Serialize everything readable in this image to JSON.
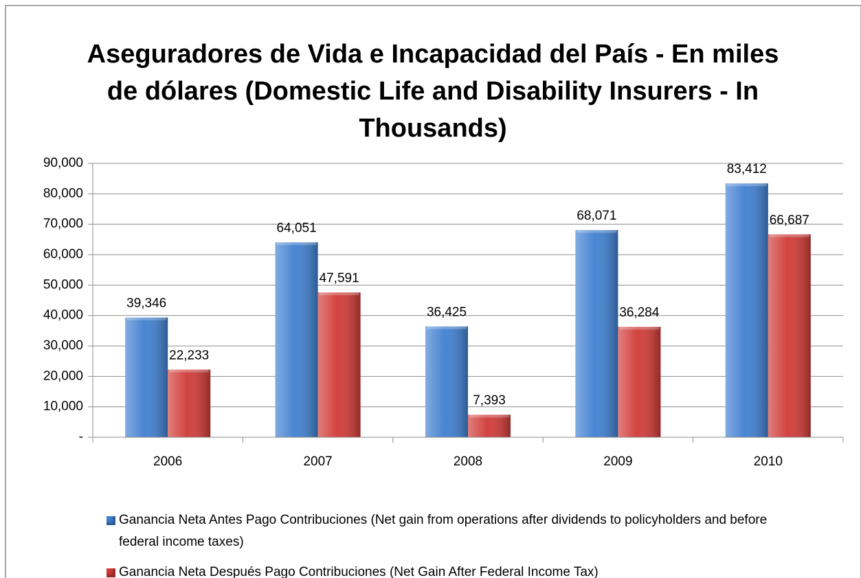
{
  "chart_data": {
    "type": "bar",
    "title": "Aseguradores de Vida e Incapacidad del País - En miles de dólares (Domestic Life and Disability Insurers - In Thousands)",
    "categories": [
      "2006",
      "2007",
      "2008",
      "2009",
      "2010"
    ],
    "series": [
      {
        "name": "Ganancia Neta Antes Pago Contribuciones  (Net gain from operations after dividends to policyholders and before federal income taxes)",
        "color": "#3f7fd0",
        "values": [
          39346,
          64051,
          36425,
          68071,
          83412
        ],
        "value_labels": [
          "39,346",
          "64,051",
          "36,425",
          "68,071",
          "83,412"
        ]
      },
      {
        "name": "Ganancia Neta Después Pago Contribuciones (Net Gain After Federal Income Tax)",
        "color": "#d03a36",
        "values": [
          22233,
          47591,
          7393,
          36284,
          66687
        ],
        "value_labels": [
          "22,233",
          "47,591",
          "7,393",
          "36,284",
          "66,687"
        ]
      }
    ],
    "ylim": [
      0,
      90000
    ],
    "yticks": [
      {
        "value": 0,
        "label": "-"
      },
      {
        "value": 10000,
        "label": "10,000"
      },
      {
        "value": 20000,
        "label": "20,000"
      },
      {
        "value": 30000,
        "label": "30,000"
      },
      {
        "value": 40000,
        "label": "40,000"
      },
      {
        "value": 50000,
        "label": "50,000"
      },
      {
        "value": 60000,
        "label": "60,000"
      },
      {
        "value": 70000,
        "label": "70,000"
      },
      {
        "value": 80000,
        "label": "80,000"
      },
      {
        "value": 90000,
        "label": "90,000"
      }
    ],
    "grid": true,
    "legend": "bottom"
  }
}
